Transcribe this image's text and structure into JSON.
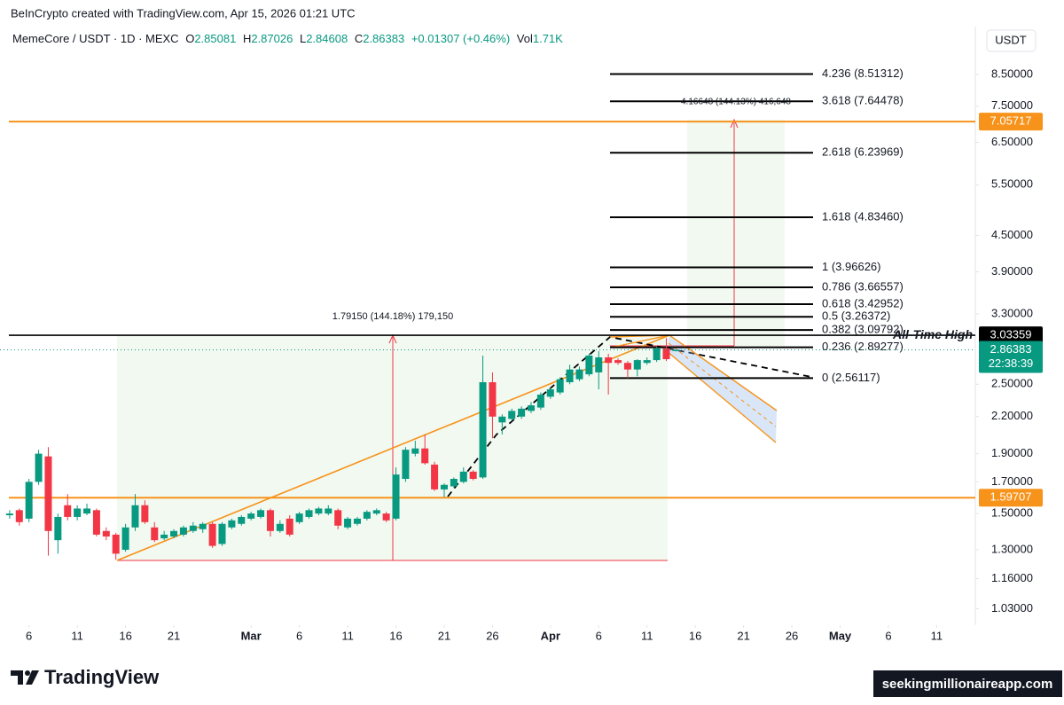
{
  "header": {
    "title": "BeInCrypto created with TradingView.com, Apr 15, 2026 01:21 UTC"
  },
  "chart_data": {
    "type": "candlestick",
    "symbol": "MemeCore / USDT · 1D · MEXC",
    "ohlc_labels": [
      "O",
      "H",
      "L",
      "C"
    ],
    "change": "+0.01307 (+0.46%)",
    "volume_label": "Vol",
    "volume": "1.71K",
    "currency": "USDT",
    "dates": [
      "2026-02-04",
      "2026-02-05",
      "2026-02-06",
      "2026-02-07",
      "2026-02-08",
      "2026-02-09",
      "2026-02-10",
      "2026-02-11",
      "2026-02-12",
      "2026-02-13",
      "2026-02-14",
      "2026-02-15",
      "2026-02-16",
      "2026-02-17",
      "2026-02-18",
      "2026-02-19",
      "2026-02-20",
      "2026-02-21",
      "2026-02-22",
      "2026-02-23",
      "2026-02-24",
      "2026-02-25",
      "2026-02-26",
      "2026-02-27",
      "2026-02-28",
      "2026-03-01",
      "2026-03-02",
      "2026-03-03",
      "2026-03-04",
      "2026-03-05",
      "2026-03-06",
      "2026-03-07",
      "2026-03-08",
      "2026-03-09",
      "2026-03-10",
      "2026-03-11",
      "2026-03-12",
      "2026-03-13",
      "2026-03-14",
      "2026-03-15",
      "2026-03-16",
      "2026-03-17",
      "2026-03-18",
      "2026-03-19",
      "2026-03-20",
      "2026-03-21",
      "2026-03-22",
      "2026-03-23",
      "2026-03-24",
      "2026-03-25",
      "2026-03-26",
      "2026-03-27",
      "2026-03-28",
      "2026-03-29",
      "2026-03-30",
      "2026-03-31",
      "2026-04-01",
      "2026-04-02",
      "2026-04-03",
      "2026-04-04",
      "2026-04-05",
      "2026-04-06",
      "2026-04-07",
      "2026-04-08",
      "2026-04-09",
      "2026-04-10",
      "2026-04-11",
      "2026-04-12",
      "2026-04-13",
      "2026-04-14"
    ],
    "open": [
      1.49,
      1.52,
      1.47,
      1.7,
      1.88,
      1.35,
      1.55,
      1.48,
      1.5,
      1.52,
      1.4,
      1.38,
      1.3,
      1.42,
      1.55,
      1.42,
      1.36,
      1.37,
      1.38,
      1.4,
      1.41,
      1.44,
      1.33,
      1.42,
      1.44,
      1.47,
      1.48,
      1.52,
      1.4,
      1.47,
      1.45,
      1.48,
      1.5,
      1.5,
      1.52,
      1.42,
      1.44,
      1.47,
      1.5,
      1.5,
      1.47,
      1.72,
      1.9,
      1.94,
      1.82,
      1.65,
      1.67,
      1.7,
      1.77,
      1.73,
      2.52,
      2.15,
      2.18,
      2.2,
      2.25,
      2.28,
      2.38,
      2.42,
      2.52,
      2.55,
      2.6,
      2.62,
      2.78,
      2.75,
      2.72,
      2.65,
      2.72,
      2.75,
      2.88,
      2.85081
    ],
    "high": [
      1.52,
      1.53,
      1.72,
      1.93,
      1.95,
      1.5,
      1.62,
      1.55,
      1.56,
      1.53,
      1.42,
      1.39,
      1.44,
      1.62,
      1.58,
      1.45,
      1.4,
      1.41,
      1.43,
      1.45,
      1.45,
      1.45,
      1.45,
      1.47,
      1.49,
      1.51,
      1.53,
      1.53,
      1.46,
      1.49,
      1.51,
      1.53,
      1.54,
      1.55,
      1.53,
      1.48,
      1.48,
      1.52,
      1.53,
      1.51,
      1.8,
      1.95,
      2.0,
      2.05,
      1.84,
      1.69,
      1.73,
      1.8,
      1.78,
      2.8,
      2.62,
      2.22,
      2.27,
      2.29,
      2.33,
      2.42,
      2.47,
      2.57,
      2.7,
      2.68,
      2.82,
      2.85,
      2.82,
      2.77,
      2.74,
      2.76,
      2.78,
      2.9,
      3.0,
      2.87026
    ],
    "low": [
      1.47,
      1.43,
      1.45,
      1.68,
      1.27,
      1.28,
      1.46,
      1.46,
      1.49,
      1.37,
      1.35,
      1.25,
      1.29,
      1.4,
      1.44,
      1.34,
      1.35,
      1.36,
      1.37,
      1.39,
      1.39,
      1.31,
      1.32,
      1.41,
      1.43,
      1.46,
      1.47,
      1.37,
      1.39,
      1.37,
      1.44,
      1.47,
      1.49,
      1.49,
      1.41,
      1.41,
      1.43,
      1.46,
      1.49,
      1.45,
      1.46,
      1.7,
      1.88,
      1.82,
      1.64,
      1.6,
      1.66,
      1.69,
      1.71,
      1.72,
      2.02,
      2.05,
      2.16,
      2.18,
      2.23,
      2.26,
      2.36,
      2.4,
      2.5,
      2.53,
      2.58,
      2.45,
      2.4,
      2.7,
      2.56,
      2.58,
      2.7,
      2.73,
      2.74,
      2.84608
    ],
    "close": [
      1.5,
      1.45,
      1.7,
      1.9,
      1.4,
      1.48,
      1.48,
      1.53,
      1.53,
      1.38,
      1.37,
      1.28,
      1.42,
      1.55,
      1.45,
      1.35,
      1.38,
      1.4,
      1.42,
      1.43,
      1.44,
      1.32,
      1.44,
      1.46,
      1.48,
      1.5,
      1.52,
      1.4,
      1.44,
      1.38,
      1.5,
      1.52,
      1.53,
      1.53,
      1.43,
      1.47,
      1.47,
      1.51,
      1.52,
      1.46,
      1.75,
      1.93,
      1.94,
      1.83,
      1.65,
      1.68,
      1.72,
      1.77,
      1.72,
      2.52,
      2.2,
      2.2,
      2.25,
      2.27,
      2.3,
      2.4,
      2.45,
      2.55,
      2.65,
      2.65,
      2.8,
      2.78,
      2.72,
      2.72,
      2.65,
      2.75,
      2.75,
      2.88,
      2.76,
      2.86383
    ],
    "up_color": "#089981",
    "down_color": "#f23645",
    "log_scale": true,
    "ylim": [
      0.965,
      10.27
    ],
    "yticks": [
      {
        "value": 1.03,
        "label": "1.03000"
      },
      {
        "value": 1.16,
        "label": "1.16000"
      },
      {
        "value": 1.3,
        "label": "1.30000"
      },
      {
        "value": 1.5,
        "label": "1.50000"
      },
      {
        "value": 1.7,
        "label": "1.70000"
      },
      {
        "value": 1.9,
        "label": "1.90000"
      },
      {
        "value": 2.2,
        "label": "2.20000"
      },
      {
        "value": 2.5,
        "label": "2.50000"
      },
      {
        "value": 3.3,
        "label": "3.30000"
      },
      {
        "value": 3.9,
        "label": "3.90000"
      },
      {
        "value": 4.5,
        "label": "4.50000"
      },
      {
        "value": 5.5,
        "label": "5.50000"
      },
      {
        "value": 6.5,
        "label": "6.50000"
      },
      {
        "value": 7.5,
        "label": "7.50000"
      },
      {
        "value": 8.5,
        "label": "8.50000"
      }
    ],
    "xlim": [
      "2026-02-03",
      "2026-05-15"
    ],
    "xticks": [
      {
        "value": "2026-02-06",
        "label": "6"
      },
      {
        "value": "2026-02-11",
        "label": "11"
      },
      {
        "value": "2026-02-16",
        "label": "16"
      },
      {
        "value": "2026-02-21",
        "label": "21"
      },
      {
        "value": "2026-03-01",
        "label": "Mar"
      },
      {
        "value": "2026-03-06",
        "label": "6"
      },
      {
        "value": "2026-03-11",
        "label": "11"
      },
      {
        "value": "2026-03-16",
        "label": "16"
      },
      {
        "value": "2026-03-21",
        "label": "21"
      },
      {
        "value": "2026-03-26",
        "label": "26"
      },
      {
        "value": "2026-04-01",
        "label": "Apr"
      },
      {
        "value": "2026-04-06",
        "label": "6"
      },
      {
        "value": "2026-04-11",
        "label": "11"
      },
      {
        "value": "2026-04-16",
        "label": "16"
      },
      {
        "value": "2026-04-21",
        "label": "21"
      },
      {
        "value": "2026-04-26",
        "label": "26"
      },
      {
        "value": "2026-05-01",
        "label": "May"
      },
      {
        "value": "2026-05-06",
        "label": "6"
      },
      {
        "value": "2026-05-11",
        "label": "11"
      }
    ],
    "price_lines": [
      {
        "value": 7.05717,
        "color": "#f7931a"
      },
      {
        "value": 3.03359,
        "color": "#000000",
        "label": "All-Time High"
      },
      {
        "value": 1.59707,
        "color": "#f7931a"
      }
    ],
    "countdown": "22:38:39",
    "fib_levels": [
      {
        "value": 8.51312,
        "label": "4.236 (8.51312)"
      },
      {
        "value": 7.64478,
        "label": "3.618 (7.64478)"
      },
      {
        "value": 6.23969,
        "label": "2.618 (6.23969)"
      },
      {
        "value": 4.8346,
        "label": "1.618 (4.83460)"
      },
      {
        "value": 3.96626,
        "label": "1 (3.96626)"
      },
      {
        "value": 3.66557,
        "label": "0.786 (3.66557)"
      },
      {
        "value": 3.42952,
        "label": "0.618 (3.42952)"
      },
      {
        "value": 3.26372,
        "label": "0.5 (3.26372)"
      },
      {
        "value": 3.09792,
        "label": "0.382 (3.09792)"
      },
      {
        "value": 2.89277,
        "label": "0.236 (2.89277)"
      },
      {
        "value": 2.56117,
        "label": "0 (2.56117)"
      }
    ],
    "annotations": [
      "1.79150 (144.18%) 179,150",
      "4.16648 (144.13%) 416,648"
    ]
  },
  "footer": {
    "brand": "TradingView",
    "watermark": "seekingmillionaireapp.com"
  }
}
